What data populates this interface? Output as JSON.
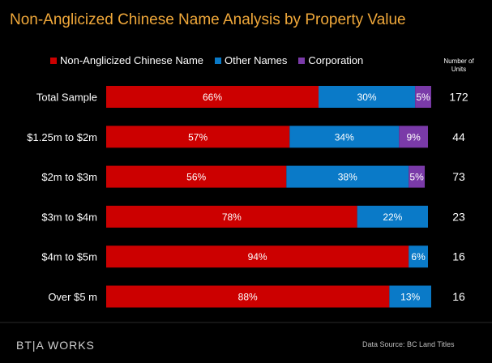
{
  "chart_data": {
    "type": "bar",
    "orientation": "horizontal",
    "stacked": true,
    "title": "Non-Anglicized Chinese Name Analysis by Property Value",
    "categories": [
      "Total Sample",
      "$1.25m to $2m",
      "$2m to $3m",
      "$3m to $4m",
      "$4m to $5m",
      "Over $5 m"
    ],
    "series": [
      {
        "name": "Non-Anglicized Chinese Name",
        "color": "#cc0000",
        "values": [
          66,
          57,
          56,
          78,
          94,
          88
        ],
        "labels": [
          "66%",
          "57%",
          "56%",
          "78%",
          "94%",
          "88%"
        ]
      },
      {
        "name": "Other Names",
        "color": "#0a7ac8",
        "values": [
          30,
          34,
          38,
          22,
          6,
          13
        ],
        "labels": [
          "30%",
          "34%",
          "38%",
          "22%",
          "6%",
          "13%"
        ]
      },
      {
        "name": "Corporation",
        "color": "#7a3aa8",
        "values": [
          5,
          9,
          5,
          0,
          0,
          0
        ],
        "labels": [
          "5%",
          "9%",
          "5%",
          "",
          "",
          ""
        ]
      }
    ],
    "units_header": "Number of Units",
    "units": [
      "172",
      "44",
      "73",
      "23",
      "16",
      "16"
    ],
    "xlim": [
      0,
      100
    ],
    "legend_position": "top",
    "grid": false
  },
  "footer": {
    "logo": "BT|A WORKS",
    "source": "Data Source:  BC Land Titles"
  }
}
